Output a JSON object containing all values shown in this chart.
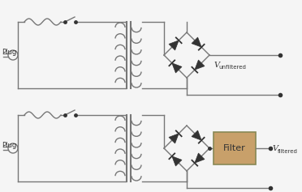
{
  "background_color": "#f5f5f5",
  "line_color": "#777777",
  "diode_color": "#333333",
  "filter_box_color": "#c8a06a",
  "filter_box_edge": "#888855",
  "text_color": "#333333",
  "plug_label": "Plug",
  "filter_label": "Filter",
  "v_unfiltered_main": "V",
  "v_unfiltered_sub": "unfiltered",
  "v_filtered_main": "V",
  "v_filtered_sub": "filtered",
  "figsize": [
    3.72,
    2.37
  ],
  "dpi": 100
}
